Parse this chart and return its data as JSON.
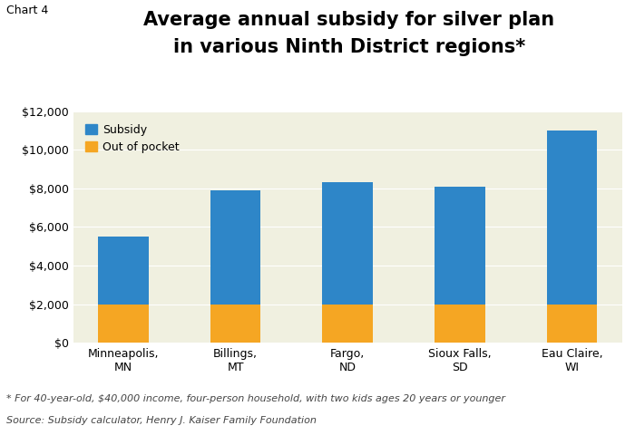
{
  "categories": [
    "Minneapolis,\nMN",
    "Billings,\nMT",
    "Fargo,\nND",
    "Sioux Falls,\nSD",
    "Eau Claire,\nWI"
  ],
  "out_of_pocket": [
    2000,
    2000,
    2000,
    2000,
    2000
  ],
  "subsidy": [
    3500,
    5900,
    6300,
    6100,
    9000
  ],
  "subsidy_color": "#2e86c8",
  "oop_color": "#f5a623",
  "plot_bg_color": "#f0f0e0",
  "title_line1": "Average annual subsidy for silver plan",
  "title_line2": "in various Ninth District regions*",
  "chart_label": "Chart 4",
  "legend_subsidy": "Subsidy",
  "legend_oop": "Out of pocket",
  "ylim": [
    0,
    12000
  ],
  "yticks": [
    0,
    2000,
    4000,
    6000,
    8000,
    10000,
    12000
  ],
  "footnote_line1": "* For 40-year-old, $40,000 income, four-person household, with two kids ages 20 years or younger",
  "footnote_line2": "Source: Subsidy calculator, Henry J. Kaiser Family Foundation",
  "title_fontsize": 15,
  "axis_fontsize": 9,
  "legend_fontsize": 9,
  "footnote_fontsize": 8,
  "chart_label_fontsize": 9
}
